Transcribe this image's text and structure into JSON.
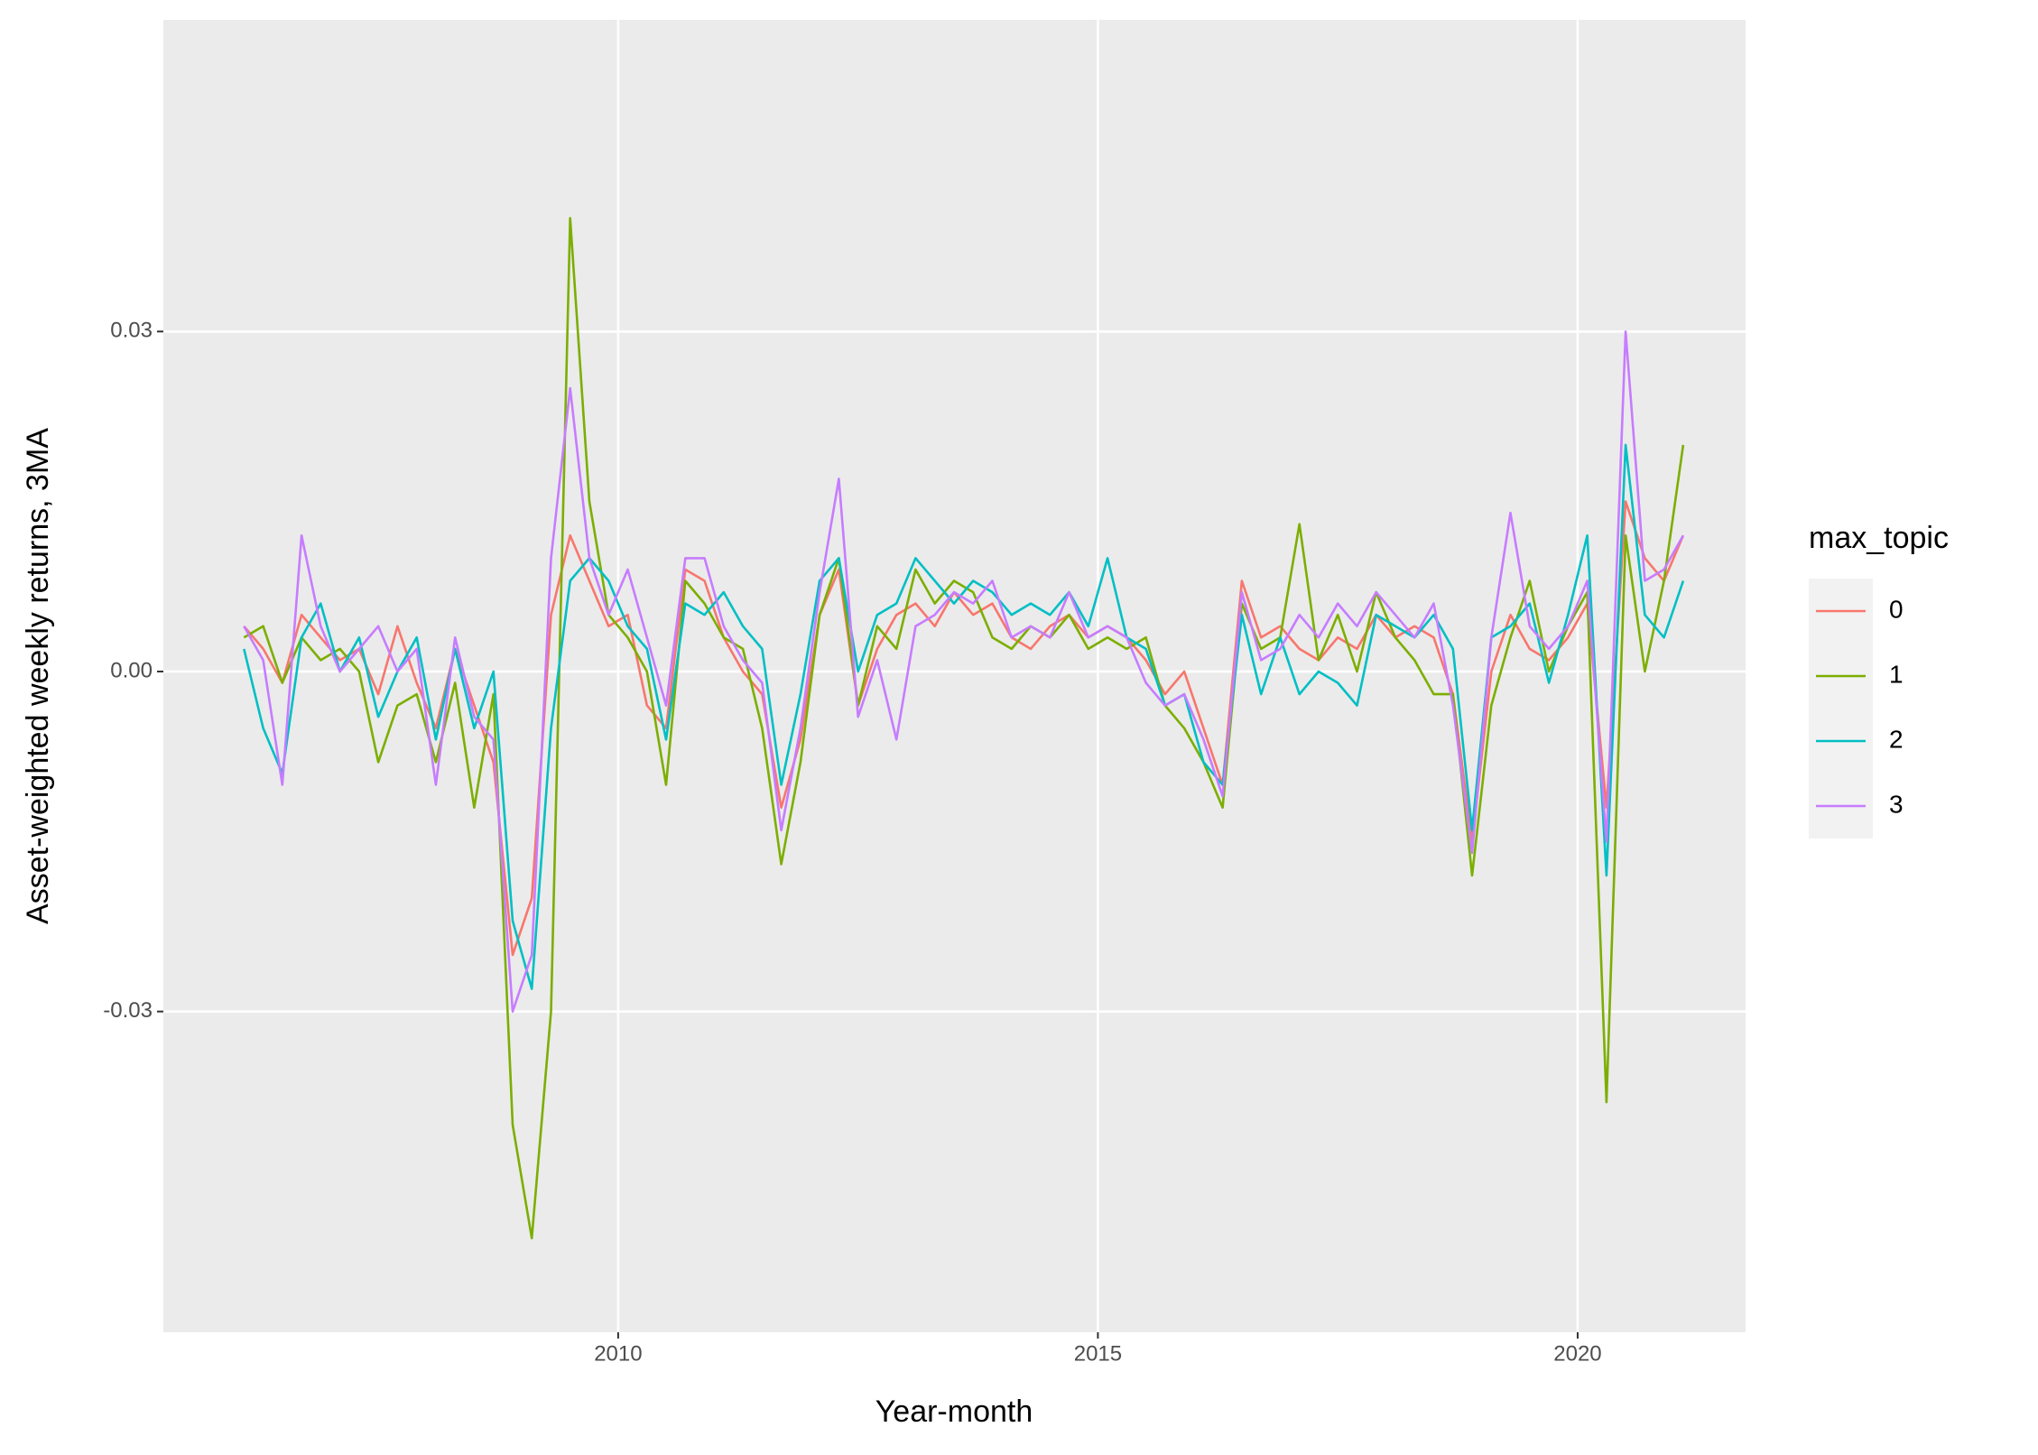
{
  "chart_data": {
    "type": "line",
    "x_label": "Year-month",
    "y_label": "Asset-weighted weekly returns, 3MA",
    "legend_title": "max_topic",
    "legend_position": "right",
    "grid": true,
    "xlim": [
      2005.26,
      2021.75
    ],
    "xticks": [
      2010,
      2015,
      2020
    ],
    "ylim": [
      -0.0583,
      0.0575
    ],
    "yticks": [
      -0.03,
      {
        "value": 0,
        "label": "0.00"
      },
      0.03
    ],
    "x": [
      2006.1,
      2006.3,
      2006.5,
      2006.7,
      2006.9,
      2007.1,
      2007.3,
      2007.5,
      2007.7,
      2007.9,
      2008.1,
      2008.3,
      2008.5,
      2008.7,
      2008.9,
      2009.1,
      2009.3,
      2009.5,
      2009.7,
      2009.9,
      2010.1,
      2010.3,
      2010.5,
      2010.7,
      2010.9,
      2011.1,
      2011.3,
      2011.5,
      2011.7,
      2011.9,
      2012.1,
      2012.3,
      2012.5,
      2012.7,
      2012.9,
      2013.1,
      2013.3,
      2013.5,
      2013.7,
      2013.9,
      2014.1,
      2014.3,
      2014.5,
      2014.7,
      2014.9,
      2015.1,
      2015.3,
      2015.5,
      2015.7,
      2015.9,
      2016.1,
      2016.3,
      2016.5,
      2016.7,
      2016.9,
      2017.1,
      2017.3,
      2017.5,
      2017.7,
      2017.9,
      2018.1,
      2018.3,
      2018.5,
      2018.7,
      2018.9,
      2019.1,
      2019.3,
      2019.5,
      2019.7,
      2019.9,
      2020.1,
      2020.3,
      2020.5,
      2020.7,
      2020.9,
      2021.1
    ],
    "series": [
      {
        "name": "0",
        "color": "#F8766D",
        "values": [
          0.004,
          0.002,
          -0.001,
          0.005,
          0.003,
          0.001,
          0.002,
          -0.002,
          0.004,
          -0.001,
          -0.005,
          0.002,
          -0.003,
          -0.008,
          -0.025,
          -0.02,
          0.005,
          0.012,
          0.008,
          0.004,
          0.005,
          -0.003,
          -0.005,
          0.009,
          0.008,
          0.003,
          0,
          -0.002,
          -0.012,
          -0.006,
          0.005,
          0.009,
          -0.003,
          0.002,
          0.005,
          0.006,
          0.004,
          0.007,
          0.005,
          0.006,
          0.003,
          0.002,
          0.004,
          0.005,
          0.003,
          0.004,
          0.003,
          0.001,
          -0.002,
          0,
          -0.005,
          -0.01,
          0.008,
          0.003,
          0.004,
          0.002,
          0.001,
          0.003,
          0.002,
          0.005,
          0.003,
          0.004,
          0.003,
          -0.002,
          -0.015,
          0,
          0.005,
          0.002,
          0.001,
          0.003,
          0.006,
          -0.012,
          0.015,
          0.01,
          0.008,
          0.012
        ]
      },
      {
        "name": "1",
        "color": "#7CAE00",
        "values": [
          0.003,
          0.004,
          -0.001,
          0.003,
          0.001,
          0.002,
          0,
          -0.008,
          -0.003,
          -0.002,
          -0.008,
          -0.001,
          -0.012,
          -0.002,
          -0.04,
          -0.05,
          -0.03,
          0.04,
          0.015,
          0.005,
          0.003,
          0,
          -0.01,
          0.008,
          0.006,
          0.003,
          0.002,
          -0.005,
          -0.017,
          -0.008,
          0.005,
          0.01,
          -0.003,
          0.004,
          0.002,
          0.009,
          0.006,
          0.008,
          0.007,
          0.003,
          0.002,
          0.004,
          0.003,
          0.005,
          0.002,
          0.003,
          0.002,
          0.003,
          -0.003,
          -0.005,
          -0.008,
          -0.012,
          0.006,
          0.002,
          0.003,
          0.013,
          0.001,
          0.005,
          0,
          0.007,
          0.003,
          0.001,
          -0.002,
          -0.002,
          -0.018,
          -0.003,
          0.003,
          0.008,
          0,
          0.004,
          0.007,
          -0.038,
          0.012,
          0,
          0.008,
          0.02
        ]
      },
      {
        "name": "2",
        "color": "#00BFC4",
        "values": [
          0.002,
          -0.005,
          -0.009,
          0.003,
          0.006,
          0,
          0.003,
          -0.004,
          0,
          0.003,
          -0.006,
          0.002,
          -0.005,
          0,
          -0.022,
          -0.028,
          -0.005,
          0.008,
          0.01,
          0.008,
          0.004,
          0.002,
          -0.006,
          0.006,
          0.005,
          0.007,
          0.004,
          0.002,
          -0.01,
          -0.002,
          0.008,
          0.01,
          0,
          0.005,
          0.006,
          0.01,
          0.008,
          0.006,
          0.008,
          0.007,
          0.005,
          0.006,
          0.005,
          0.007,
          0.004,
          0.01,
          0.003,
          0.002,
          -0.003,
          -0.002,
          -0.008,
          -0.01,
          0.005,
          -0.002,
          0.003,
          -0.002,
          0,
          -0.001,
          -0.003,
          0.005,
          0.004,
          0.003,
          0.005,
          0.002,
          -0.014,
          0.003,
          0.004,
          0.006,
          -0.001,
          0.005,
          0.012,
          -0.018,
          0.02,
          0.005,
          0.003,
          0.008
        ]
      },
      {
        "name": "3",
        "color": "#C77CFF",
        "values": [
          0.004,
          0.001,
          -0.01,
          0.012,
          0.004,
          0,
          0.002,
          0.004,
          0,
          0.002,
          -0.01,
          0.003,
          -0.004,
          -0.006,
          -0.03,
          -0.025,
          0.01,
          0.025,
          0.01,
          0.005,
          0.009,
          0.003,
          -0.003,
          0.01,
          0.01,
          0.004,
          0.001,
          -0.001,
          -0.014,
          -0.005,
          0.007,
          0.017,
          -0.004,
          0.001,
          -0.006,
          0.004,
          0.005,
          0.007,
          0.006,
          0.008,
          0.003,
          0.004,
          0.003,
          0.007,
          0.003,
          0.004,
          0.003,
          -0.001,
          -0.003,
          -0.002,
          -0.006,
          -0.011,
          0.007,
          0.001,
          0.002,
          0.005,
          0.003,
          0.006,
          0.004,
          0.007,
          0.005,
          0.003,
          0.006,
          -0.003,
          -0.016,
          0.003,
          0.014,
          0.004,
          0.002,
          0.004,
          0.008,
          -0.015,
          0.03,
          0.008,
          0.009,
          0.012
        ]
      }
    ]
  }
}
